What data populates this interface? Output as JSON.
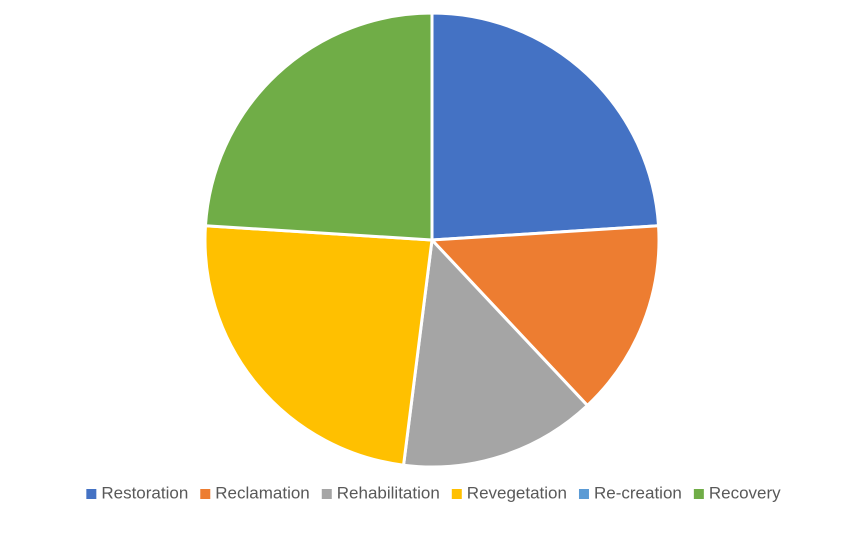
{
  "chart_data": {
    "type": "pie",
    "categories": [
      "Restoration",
      "Reclamation",
      "Rehabilitation",
      "Revegetation",
      "Re-creation",
      "Recovery"
    ],
    "values": [
      24,
      14,
      14,
      24,
      0,
      24
    ],
    "colors": [
      "#4472c4",
      "#ed7d31",
      "#a5a5a5",
      "#ffc000",
      "#5b9bd5",
      "#70ad47"
    ],
    "legend": "bottom"
  }
}
